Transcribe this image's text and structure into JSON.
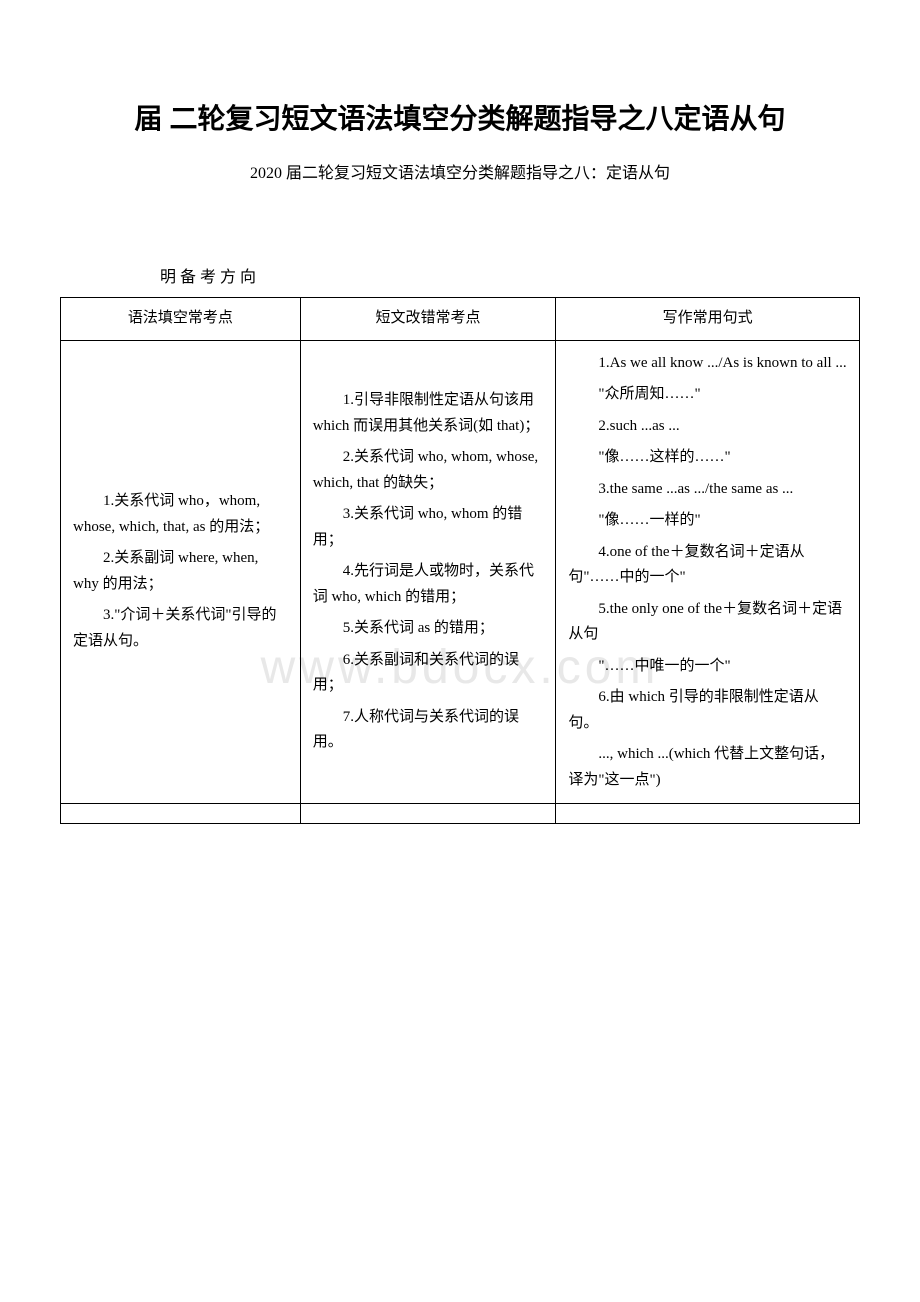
{
  "title": "届 二轮复习短文语法填空分类解题指导之八定语从句",
  "subtitle": "2020 届二轮复习短文语法填空分类解题指导之八：定语从句",
  "sectionHeading": "明 备 考 方 向",
  "watermark": "www.bdocx.com",
  "table": {
    "headers": [
      "语法填空常考点",
      "短文改错常考点",
      "写作常用句式"
    ],
    "col1": {
      "p1": "1.关系代词 who，whom, whose, which, that, as 的用法；",
      "p2": "2.关系副词 where, when, why 的用法；",
      "p3": "3.\"介词＋关系代词\"引导的定语从句。"
    },
    "col2": {
      "p1": "1.引导非限制性定语从句该用 which 而误用其他关系词(如 that)；",
      "p2": "2.关系代词 who, whom, whose, which, that 的缺失；",
      "p3": "3.关系代词 who, whom 的错用；",
      "p4": "4.先行词是人或物时，关系代词 who, which 的错用；",
      "p5": "5.关系代词 as 的错用；",
      "p6": "6.关系副词和关系代词的误用；",
      "p7": "7.人称代词与关系代词的误用。"
    },
    "col3": {
      "p1": "1.As we all know .../As is known to all ...",
      "p2": "\"众所周知……\"",
      "p3": "2.such ...as ...",
      "p4": "\"像……这样的……\"",
      "p5": "3.the same ...as .../the same as ...",
      "p6": "\"像……一样的\"",
      "p7": "4.one of the＋复数名词＋定语从句\"……中的一个\"",
      "p8": "5.the only one of the＋复数名词＋定语从句",
      "p9": "\"……中唯一的一个\"",
      "p10": "6.由 which 引导的非限制性定语从句。",
      "p11": "..., which ...(which 代替上文整句话，译为\"这一点\")"
    }
  }
}
